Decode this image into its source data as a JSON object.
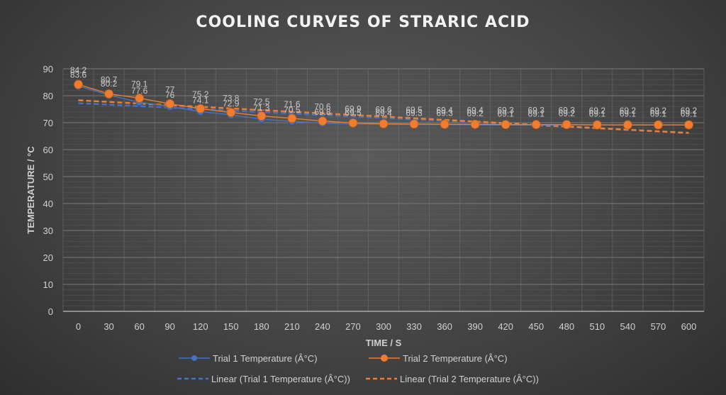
{
  "chart_data": {
    "type": "line",
    "title": "COOLING CURVES OF STRARIC ACID",
    "xlabel": "TIME / S",
    "ylabel": "TEMPERATURE / °C",
    "x": [
      0,
      30,
      60,
      90,
      120,
      150,
      180,
      210,
      240,
      270,
      300,
      330,
      360,
      390,
      420,
      450,
      480,
      510,
      540,
      570,
      600
    ],
    "ylim": [
      0,
      90
    ],
    "yticks": [
      0,
      10,
      20,
      30,
      40,
      50,
      60,
      70,
      80,
      90
    ],
    "grid": true,
    "legend_position": "bottom",
    "series": [
      {
        "name": "Trial 1 Temperature (Â°C)",
        "color": "#4472c4",
        "values": [
          83.6,
          80.2,
          77.6,
          76,
          74.1,
          72.9,
          71.3,
          70.5,
          69.8,
          69.5,
          69.4,
          69.3,
          69.3,
          69.2,
          69.1,
          69.1,
          69.2,
          69.1,
          69.1,
          69.1,
          69.1
        ],
        "labels": [
          "83.6",
          "80.2",
          "77.6",
          "76",
          "74.1",
          "72.9",
          "71.3",
          "70.5",
          "69.8",
          "69.5",
          "69.4",
          "69.3",
          "69.3",
          "69.2",
          "69.1",
          "69.1",
          "69.2",
          "69.1",
          "69.1",
          "69.1",
          "69.1"
        ]
      },
      {
        "name": "Trial 2 Temperature (Â°C)",
        "color": "#ed7d31",
        "values": [
          84.2,
          80.7,
          79.1,
          77,
          75.2,
          73.8,
          72.5,
          71.6,
          70.6,
          69.9,
          69.6,
          69.5,
          69.4,
          69.4,
          69.3,
          69.3,
          69.3,
          69.2,
          69.2,
          69.2,
          69.2
        ],
        "labels": [
          "84.2",
          "80.7",
          "79.1",
          "77",
          "75.2",
          "73.8",
          "72.5",
          "71.6",
          "70.6",
          "69.9",
          "69.6",
          "69.5",
          "69.4",
          "69.4",
          "69.3",
          "69.3",
          "69.3",
          "69.2",
          "69.2",
          "69.2",
          "69.2"
        ]
      }
    ],
    "trendlines": [
      {
        "name": "Linear (Trial 1 Temperature (Â°C))",
        "color": "#4472c4",
        "type": "linear",
        "of_series": 0
      },
      {
        "name": "Linear (Trial 2 Temperature (Â°C))",
        "color": "#ed7d31",
        "type": "linear",
        "of_series": 1
      }
    ]
  }
}
